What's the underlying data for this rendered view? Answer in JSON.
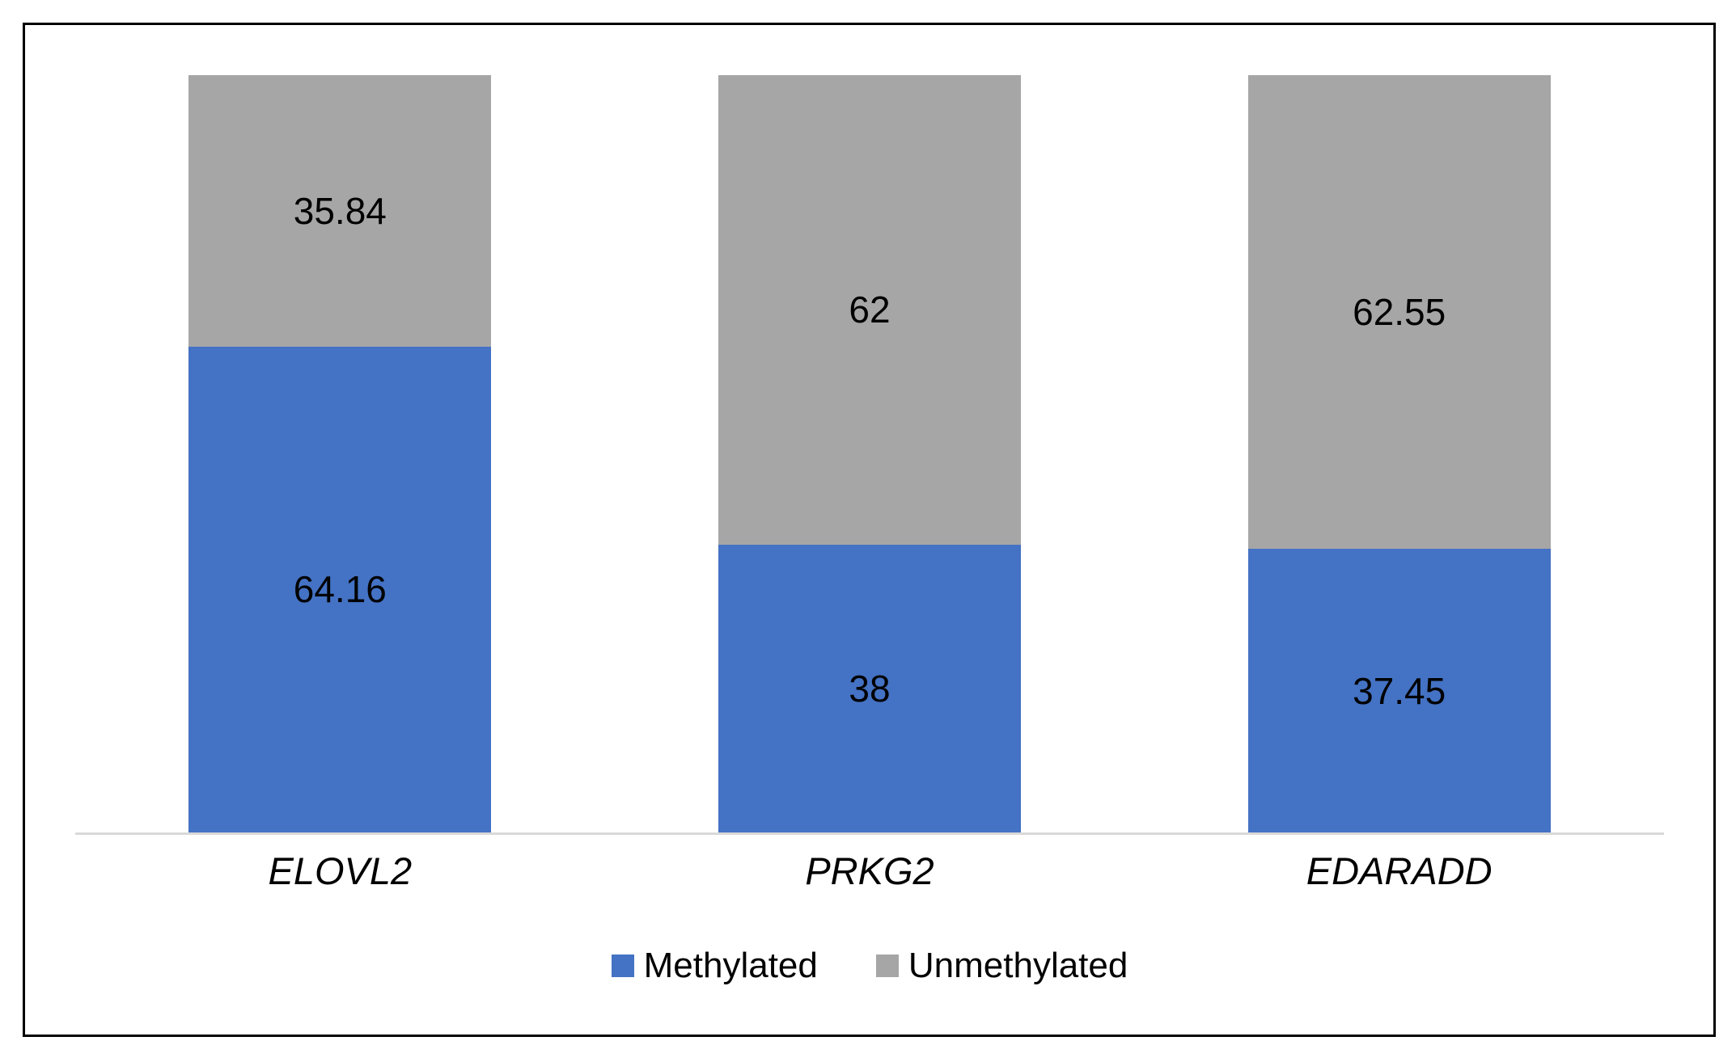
{
  "chart_data": {
    "type": "bar",
    "stacking": "percent",
    "title": "",
    "xlabel": "",
    "ylabel": "",
    "ylim": [
      0,
      100
    ],
    "grid": false,
    "legend_position": "bottom",
    "categories": [
      "ELOVL2",
      "PRKG2",
      "EDARADD"
    ],
    "series": [
      {
        "name": "Methylated",
        "color": "#4472C4",
        "values": [
          64.16,
          38,
          37.45
        ]
      },
      {
        "name": "Unmethylated",
        "color": "#A6A6A6",
        "values": [
          35.84,
          62,
          62.55
        ]
      }
    ],
    "axis_line_color": "#D9D9D9",
    "value_label_color": "#000000",
    "category_label_style": "italic"
  },
  "frame": {
    "border_color": "#000000",
    "background": "#FFFFFF"
  }
}
